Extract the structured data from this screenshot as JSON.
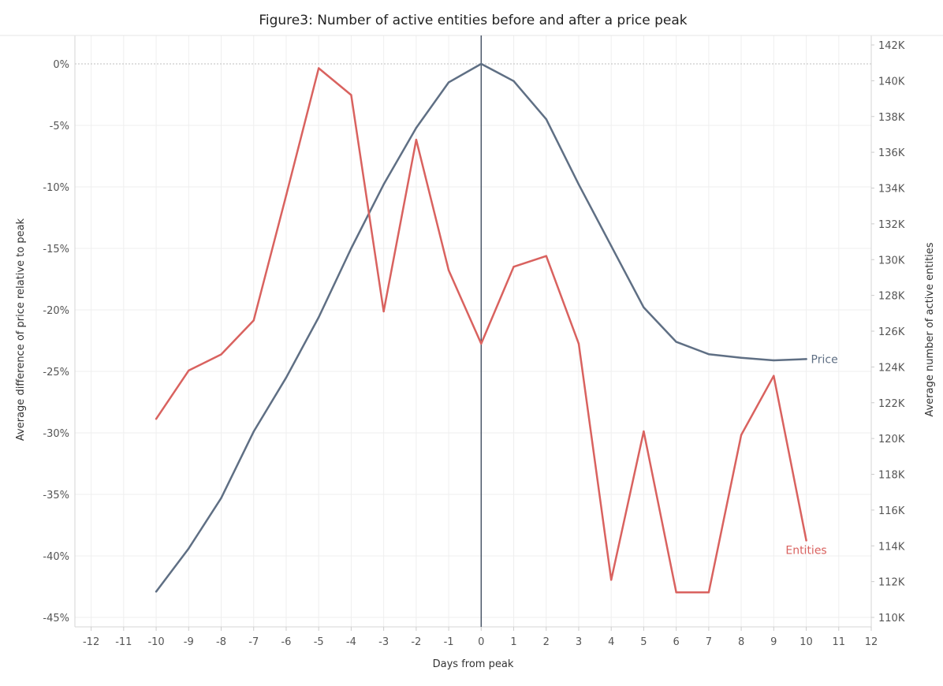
{
  "chart_data": {
    "type": "line",
    "title": "Figure3: Number of active entities before and after a price peak",
    "xlabel": "Days from peak",
    "ylabel_left": "Average difference of price relative to peak",
    "ylabel_right": "Average number of active entities",
    "x_ticks": [
      -12,
      -11,
      -10,
      -9,
      -8,
      -7,
      -6,
      -5,
      -4,
      -3,
      -2,
      -1,
      0,
      1,
      2,
      3,
      4,
      5,
      6,
      7,
      8,
      9,
      10,
      11,
      12
    ],
    "x_tick_labels": [
      "-12",
      "-11",
      "-10",
      "-9",
      "-8",
      "-7",
      "-6",
      "-5",
      "-4",
      "-3",
      "-2",
      "-1",
      "0",
      "1",
      "2",
      "3",
      "4",
      "5",
      "6",
      "7",
      "8",
      "9",
      "10",
      "11",
      "12"
    ],
    "xlim": [
      -12.5,
      12
    ],
    "y_left_ticks": [
      0,
      -5,
      -10,
      -15,
      -20,
      -25,
      -30,
      -35,
      -40,
      -45
    ],
    "y_left_tick_labels": [
      "0%",
      "-5%",
      "-10%",
      "-15%",
      "-20%",
      "-25%",
      "-30%",
      "-35%",
      "-40%",
      "-45%"
    ],
    "y_left_lim": [
      -45,
      0
    ],
    "y_right_ticks": [
      110000,
      112000,
      114000,
      116000,
      118000,
      120000,
      122000,
      124000,
      126000,
      128000,
      130000,
      132000,
      134000,
      136000,
      138000,
      140000,
      142000
    ],
    "y_right_tick_labels": [
      "110K",
      "112K",
      "114K",
      "116K",
      "118K",
      "120K",
      "122K",
      "124K",
      "126K",
      "128K",
      "130K",
      "132K",
      "134K",
      "136K",
      "138K",
      "140K",
      "142K"
    ],
    "y_right_lim": [
      110000,
      142000
    ],
    "reference_line_x": 0,
    "grid": true,
    "series": [
      {
        "name": "Price",
        "axis": "left",
        "color": "#5f6f84",
        "x": [
          -10,
          -9,
          -8,
          -7,
          -6,
          -5,
          -4,
          -3,
          -2,
          -1,
          0,
          1,
          2,
          3,
          4,
          5,
          6,
          7,
          8,
          9,
          10
        ],
        "values": [
          -42.9,
          -39.4,
          -35.3,
          -29.9,
          -25.5,
          -20.6,
          -15.0,
          -9.8,
          -5.2,
          -1.5,
          0.0,
          -1.4,
          -4.5,
          -9.8,
          -14.8,
          -19.8,
          -22.6,
          -23.6,
          -23.9,
          -24.1,
          -24.0
        ]
      },
      {
        "name": "Entities",
        "axis": "right",
        "color": "#d9625f",
        "x": [
          -10,
          -9,
          -8,
          -7,
          -6,
          -5,
          -4,
          -3,
          -2,
          -1,
          0,
          1,
          2,
          3,
          4,
          5,
          6,
          7,
          8,
          9,
          10
        ],
        "values": [
          121100,
          123800,
          124700,
          126600,
          133600,
          140700,
          139200,
          127100,
          136700,
          129400,
          125300,
          129600,
          130200,
          125300,
          112100,
          120400,
          111400,
          111400,
          120200,
          123500,
          114300
        ]
      }
    ]
  }
}
